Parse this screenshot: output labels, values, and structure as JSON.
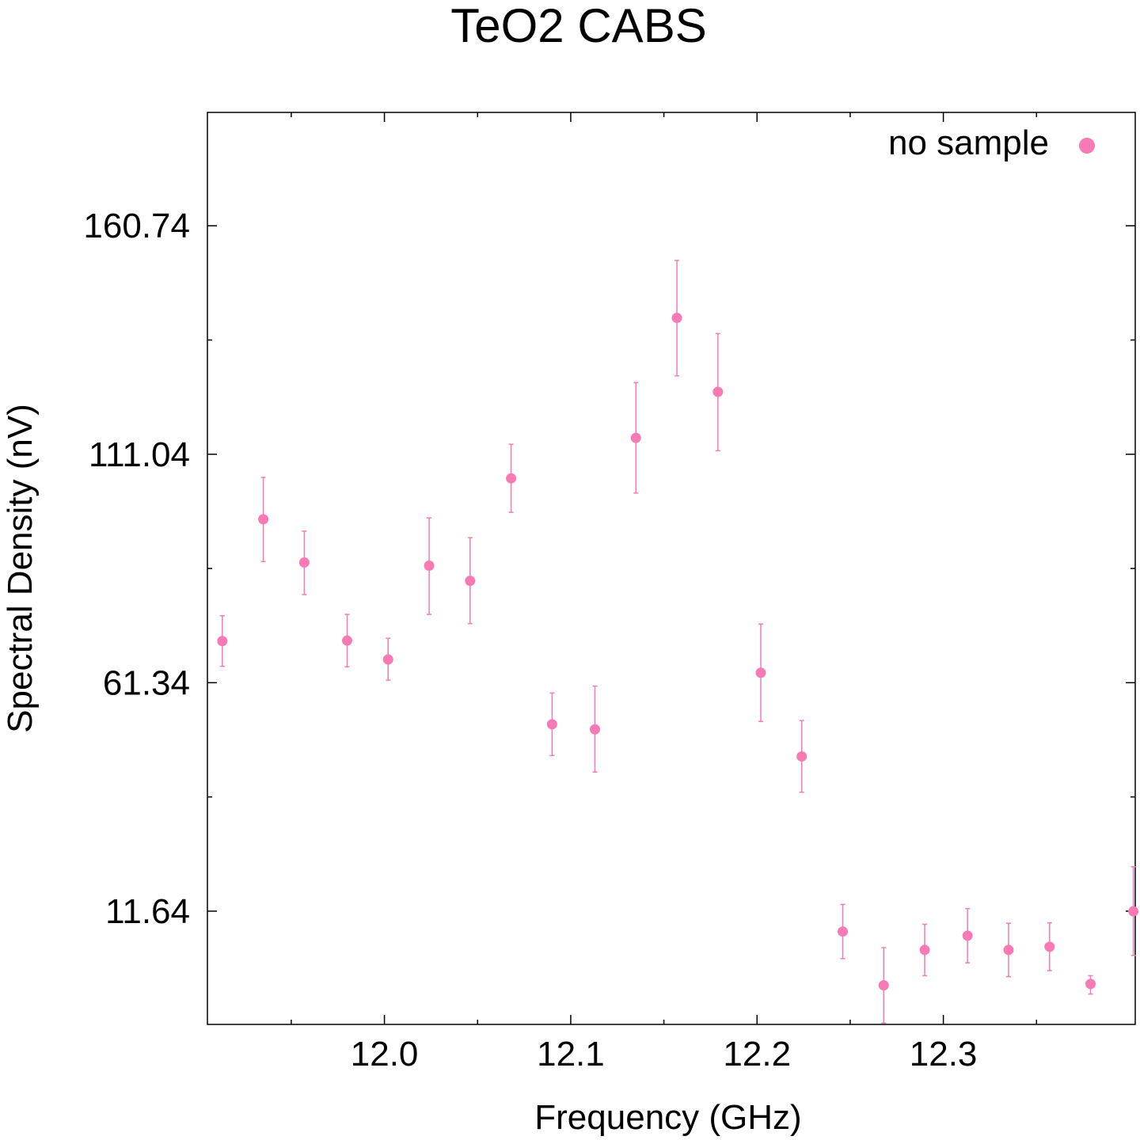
{
  "chart_data": {
    "type": "scatter",
    "title": "TeO2 CABS",
    "xlabel": "Frequency (GHz)",
    "ylabel": "Spectral Density (nV)",
    "xlim": [
      11.905,
      12.403
    ],
    "ylim": [
      -13.0,
      185.4
    ],
    "xticks": [
      12.0,
      12.1,
      12.2,
      12.3
    ],
    "xtick_labels": [
      "12.0",
      "12.1",
      "12.2",
      "12.3"
    ],
    "x_minor_ticks": [
      11.95,
      12.05,
      12.15,
      12.25,
      12.35
    ],
    "yticks": [
      11.64,
      61.34,
      111.04,
      160.74
    ],
    "ytick_labels": [
      "11.64",
      "61.34",
      "111.04",
      "160.74"
    ],
    "y_minor_ticks": [
      36.49,
      86.19,
      135.89
    ],
    "grid": false,
    "legend_position": "top-right",
    "series": [
      {
        "name": "no sample",
        "color": "#f77ab4",
        "marker": "circle",
        "x": [
          11.913,
          11.935,
          11.957,
          11.98,
          12.002,
          12.024,
          12.046,
          12.068,
          12.09,
          12.113,
          12.135,
          12.157,
          12.179,
          12.202,
          12.224,
          12.246,
          12.268,
          12.29,
          12.313,
          12.335,
          12.357,
          12.379,
          12.402
        ],
        "y": [
          70.4,
          96.9,
          87.5,
          70.5,
          66.4,
          86.8,
          83.5,
          105.8,
          52.3,
          51.2,
          114.6,
          140.7,
          124.6,
          63.5,
          45.3,
          7.2,
          -4.5,
          3.2,
          6.3,
          3.2,
          3.9,
          -4.2,
          11.6
        ],
        "yerr_low": [
          5.5,
          9.2,
          7.0,
          5.7,
          4.5,
          10.6,
          9.3,
          7.4,
          6.8,
          9.3,
          12.0,
          12.6,
          12.8,
          10.6,
          7.8,
          5.9,
          8.2,
          5.6,
          5.9,
          5.8,
          5.2,
          2.2,
          9.6
        ],
        "yerr_high": [
          5.5,
          9.1,
          6.8,
          5.7,
          4.6,
          10.4,
          9.4,
          7.4,
          6.8,
          9.4,
          12.0,
          12.5,
          12.7,
          10.6,
          7.8,
          5.9,
          8.2,
          5.6,
          5.9,
          5.8,
          5.2,
          1.8,
          9.7
        ]
      }
    ]
  }
}
